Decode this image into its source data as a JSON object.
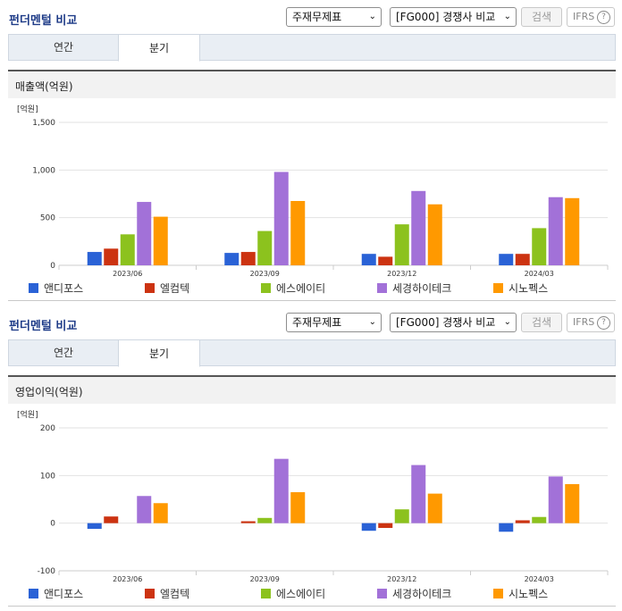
{
  "header": {
    "title": "펀더멘털 비교",
    "select1": "주재무제표",
    "select2": "[FG000] 경쟁사 비교",
    "search_label": "검색",
    "ifrs_label": "IFRS",
    "help_label": "?"
  },
  "tabs": {
    "annual": "연간",
    "quarterly": "분기"
  },
  "colors": [
    "#2a62d6",
    "#cc3311",
    "#8cc21e",
    "#a271d8",
    "#ff9900"
  ],
  "charts": [
    {
      "section_title": "매출액(억원)",
      "unit": "[억원]",
      "chart_data": {
        "type": "bar",
        "categories": [
          "2023/06",
          "2023/09",
          "2023/12",
          "2024/03"
        ],
        "series": [
          {
            "name": "앤디포스",
            "values": [
              140,
              130,
              120,
              120
            ]
          },
          {
            "name": "엘컴텍",
            "values": [
              175,
              140,
              90,
              120
            ]
          },
          {
            "name": "에스에이티",
            "values": [
              325,
              360,
              430,
              390
            ]
          },
          {
            "name": "세경하이테크",
            "values": [
              665,
              980,
              780,
              715
            ]
          },
          {
            "name": "시노펙스",
            "values": [
              510,
              675,
              640,
              705
            ]
          }
        ],
        "ylim": [
          0,
          1500
        ],
        "yticks": [
          "0",
          "500",
          "1,000",
          "1,500"
        ],
        "ytick_values": [
          0,
          500,
          1000,
          1500
        ]
      }
    },
    {
      "section_title": "영업이익(억원)",
      "unit": "[억원]",
      "chart_data": {
        "type": "bar",
        "categories": [
          "2023/06",
          "2023/09",
          "2023/12",
          "2024/03"
        ],
        "series": [
          {
            "name": "앤디포스",
            "values": [
              -12,
              0,
              -16,
              -18
            ]
          },
          {
            "name": "엘컴텍",
            "values": [
              14,
              4,
              -10,
              6
            ]
          },
          {
            "name": "에스에이티",
            "values": [
              0,
              11,
              29,
              13
            ]
          },
          {
            "name": "세경하이테크",
            "values": [
              57,
              135,
              122,
              98
            ]
          },
          {
            "name": "시노펙스",
            "values": [
              42,
              65,
              62,
              82
            ]
          }
        ],
        "ylim": [
          -100,
          200
        ],
        "yticks": [
          "-100",
          "0",
          "100",
          "200"
        ],
        "ytick_values": [
          -100,
          0,
          100,
          200
        ]
      }
    }
  ]
}
